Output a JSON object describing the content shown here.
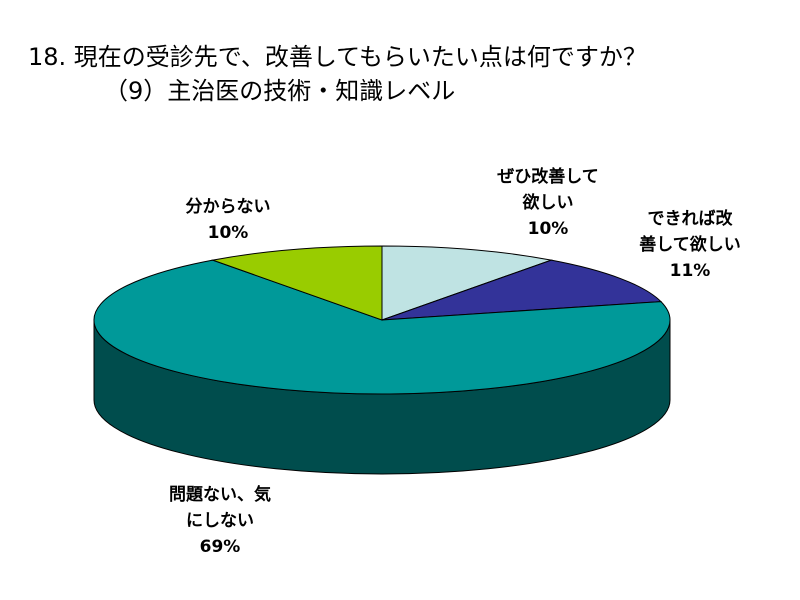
{
  "title": {
    "line1": "18. 現在の受診先で、改善してもらいたい点は何ですか？",
    "line2": "（9）主治医の技術・知識レベル"
  },
  "chart_data": {
    "type": "pie",
    "style": "3d",
    "categories": [
      "ぜひ改善して欲しい",
      "できれば改善して欲しい",
      "問題ない、気にしない",
      "分からない"
    ],
    "values": [
      10,
      11,
      69,
      10
    ],
    "value_labels": [
      "10%",
      "11%",
      "69%",
      "10%"
    ],
    "label_lines": [
      [
        "ぜひ改善して",
        "欲しい"
      ],
      [
        "できれば改",
        "善して欲しい"
      ],
      [
        "問題ない、気",
        "にしない"
      ],
      [
        "分からない"
      ]
    ],
    "colors": [
      "#bfe3e3",
      "#333399",
      "#009999",
      "#99cc00"
    ],
    "side_colors": [
      "#8aa9a9",
      "#1f1f66",
      "#004d4d",
      "#6b8f00"
    ],
    "start_angle_deg": 90,
    "direction": "clockwise"
  }
}
